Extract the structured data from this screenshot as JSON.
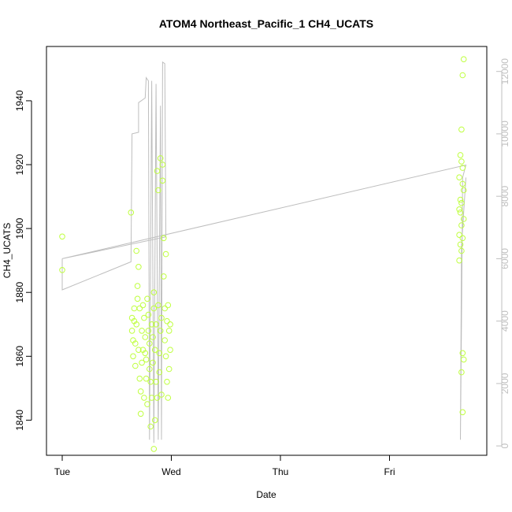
{
  "chart_data": {
    "type": "scatter",
    "title": "ATOM4 Northeast_Pacific_1 CH4_UCATS",
    "xlabel": "Date",
    "ylabel": "CH4_UCATS",
    "x_ticks": [
      "Tue",
      "Wed",
      "Thu",
      "Fri"
    ],
    "xlim_days": [
      -0.02,
      3.9
    ],
    "y_left": {
      "ticks": [
        1840,
        1860,
        1880,
        1900,
        1920,
        1940
      ],
      "ylim": [
        1829,
        1957
      ]
    },
    "y_right": {
      "ticks": [
        0,
        2000,
        4000,
        6000,
        8000,
        10000,
        12000
      ],
      "ylim": [
        -300,
        12800
      ]
    },
    "grid": false,
    "colors": {
      "points": "#bfff3f",
      "line": "#bebebe",
      "axis": "#000000",
      "right_axis": "#bfbfbf"
    },
    "series": [
      {
        "kind": "points",
        "axis": "left",
        "x_unit": "days since Tue 00:00",
        "points": [
          [
            0.0,
            1897.5
          ],
          [
            0.0,
            1887.0
          ],
          [
            0.63,
            1905.0
          ],
          [
            0.64,
            1872.0
          ],
          [
            0.64,
            1868.0
          ],
          [
            0.65,
            1865.0
          ],
          [
            0.65,
            1860.0
          ],
          [
            0.66,
            1875.0
          ],
          [
            0.66,
            1871.0
          ],
          [
            0.67,
            1864.0
          ],
          [
            0.67,
            1857.0
          ],
          [
            0.68,
            1893.0
          ],
          [
            0.68,
            1870.0
          ],
          [
            0.69,
            1878.0
          ],
          [
            0.69,
            1882.0
          ],
          [
            0.7,
            1888.0
          ],
          [
            0.7,
            1862.0
          ],
          [
            0.71,
            1875.0
          ],
          [
            0.71,
            1853.0
          ],
          [
            0.72,
            1849.0
          ],
          [
            0.72,
            1842.0
          ],
          [
            0.73,
            1868.0
          ],
          [
            0.73,
            1858.0
          ],
          [
            0.74,
            1876.0
          ],
          [
            0.74,
            1862.0
          ],
          [
            0.75,
            1847.0
          ],
          [
            0.75,
            1872.0
          ],
          [
            0.76,
            1866.0
          ],
          [
            0.76,
            1861.0
          ],
          [
            0.77,
            1859.0
          ],
          [
            0.77,
            1853.0
          ],
          [
            0.78,
            1845.0
          ],
          [
            0.78,
            1878.0
          ],
          [
            0.79,
            1873.0
          ],
          [
            0.79,
            1868.0
          ],
          [
            0.8,
            1864.0
          ],
          [
            0.8,
            1856.0
          ],
          [
            0.81,
            1838.0
          ],
          [
            0.81,
            1852.0
          ],
          [
            0.82,
            1847.0
          ],
          [
            0.82,
            1870.0
          ],
          [
            0.83,
            1866.0
          ],
          [
            0.83,
            1858.0
          ],
          [
            0.84,
            1880.0
          ],
          [
            0.84,
            1875.0
          ],
          [
            0.84,
            1831.0
          ],
          [
            0.85,
            1840.0
          ],
          [
            0.85,
            1862.0
          ],
          [
            0.86,
            1870.0
          ],
          [
            0.86,
            1852.0
          ],
          [
            0.87,
            1847.0
          ],
          [
            0.87,
            1918.0
          ],
          [
            0.88,
            1912.0
          ],
          [
            0.88,
            1876.0
          ],
          [
            0.89,
            1861.0
          ],
          [
            0.89,
            1855.0
          ],
          [
            0.9,
            1922.0
          ],
          [
            0.9,
            1868.0
          ],
          [
            0.91,
            1872.0
          ],
          [
            0.91,
            1848.0
          ],
          [
            0.92,
            1915.0
          ],
          [
            0.92,
            1920.0
          ],
          [
            0.93,
            1897.0
          ],
          [
            0.93,
            1885.0
          ],
          [
            0.94,
            1875.0
          ],
          [
            0.94,
            1865.0
          ],
          [
            0.95,
            1892.0
          ],
          [
            0.95,
            1860.0
          ],
          [
            0.96,
            1871.0
          ],
          [
            0.96,
            1852.0
          ],
          [
            0.97,
            1876.0
          ],
          [
            0.97,
            1847.0
          ],
          [
            0.98,
            1868.0
          ],
          [
            0.98,
            1856.0
          ],
          [
            0.99,
            1862.0
          ],
          [
            0.99,
            1870.0
          ],
          [
            3.67,
            1948.0
          ],
          [
            3.68,
            1953.0
          ],
          [
            3.66,
            1931.0
          ],
          [
            3.65,
            1923.0
          ],
          [
            3.66,
            1921.0
          ],
          [
            3.67,
            1919.0
          ],
          [
            3.64,
            1916.0
          ],
          [
            3.67,
            1914.0
          ],
          [
            3.68,
            1912.0
          ],
          [
            3.65,
            1909.0
          ],
          [
            3.66,
            1908.0
          ],
          [
            3.64,
            1906.0
          ],
          [
            3.65,
            1905.0
          ],
          [
            3.68,
            1903.0
          ],
          [
            3.66,
            1901.0
          ],
          [
            3.64,
            1898.0
          ],
          [
            3.67,
            1897.0
          ],
          [
            3.65,
            1895.0
          ],
          [
            3.66,
            1893.0
          ],
          [
            3.64,
            1890.0
          ],
          [
            3.67,
            1861.0
          ],
          [
            3.68,
            1859.0
          ],
          [
            3.66,
            1855.0
          ],
          [
            3.67,
            1842.5
          ]
        ]
      },
      {
        "kind": "line",
        "axis": "right",
        "x_unit": "days since Tue 00:00",
        "points": [
          [
            0.0,
            6000
          ],
          [
            0.0,
            5000
          ],
          [
            0.63,
            5900
          ],
          [
            0.64,
            10000
          ],
          [
            0.7,
            10050
          ],
          [
            0.7,
            11000
          ],
          [
            0.76,
            11150
          ],
          [
            0.77,
            11800
          ],
          [
            0.79,
            11700
          ],
          [
            0.8,
            200
          ],
          [
            0.82,
            11700
          ],
          [
            0.84,
            100
          ],
          [
            0.86,
            11600
          ],
          [
            0.88,
            200
          ],
          [
            0.9,
            10900
          ],
          [
            0.91,
            200
          ],
          [
            0.92,
            12300
          ],
          [
            0.94,
            12250
          ],
          [
            0.95,
            6700
          ],
          [
            0.0,
            6000
          ],
          [
            3.7,
            9000
          ],
          [
            3.67,
            8600
          ],
          [
            3.66,
            4000
          ],
          [
            3.65,
            200
          ],
          [
            3.66,
            6400
          ],
          [
            3.7,
            8600
          ]
        ]
      }
    ]
  }
}
